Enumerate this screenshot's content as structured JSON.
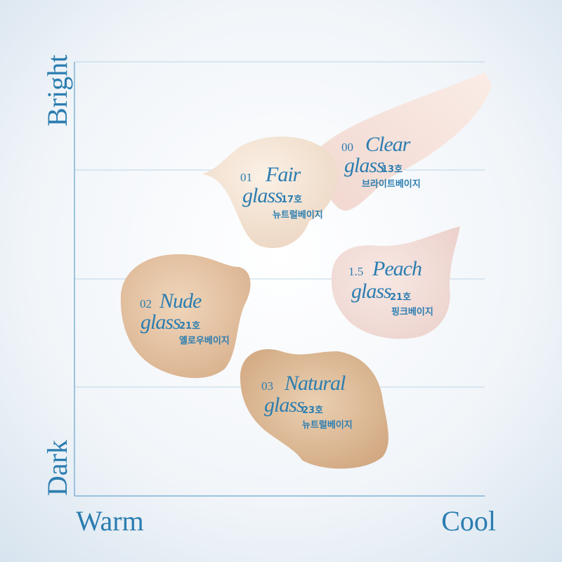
{
  "axes": {
    "y_top": "Bright",
    "y_bottom": "Dark",
    "x_left": "Warm",
    "x_right": "Cool"
  },
  "swatches": [
    {
      "number": "01",
      "name": "Fair",
      "line2": "glass",
      "shade": "17호",
      "shade_name": "뉴트럴베이지"
    },
    {
      "number": "00",
      "name": "Clear",
      "line2": "glass",
      "shade": "13호",
      "shade_name": "브라이트베이지"
    },
    {
      "number": "1.5",
      "name": "Peach",
      "line2": "glass",
      "shade": "21호",
      "shade_name": "핑크베이지"
    },
    {
      "number": "02",
      "name": "Nude",
      "line2": "glass",
      "shade": "21호",
      "shade_name": "옐로우베이지"
    },
    {
      "number": "03",
      "name": "Natural",
      "line2": "glass",
      "shade": "23호",
      "shade_name": "뉴트럴베이지"
    }
  ]
}
